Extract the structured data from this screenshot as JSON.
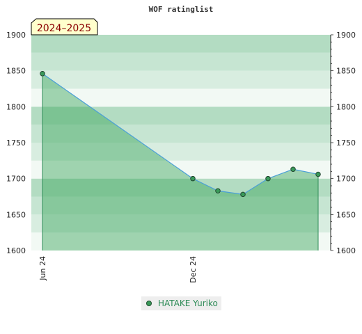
{
  "chart_data": {
    "type": "area",
    "title": "WOF ratinglist",
    "period_badge": "2024–2025",
    "ylim": [
      1600,
      1900
    ],
    "yticks": [
      1600,
      1650,
      1700,
      1750,
      1800,
      1850,
      1900
    ],
    "xtick_labels": [
      "Jun 24",
      "Dec 24"
    ],
    "series": [
      {
        "name": "HATAKE Yuriko",
        "x": [
          "2024-06",
          "2024-12",
          "2025-01",
          "2025-02",
          "2025-03",
          "2025-04",
          "2025-05"
        ],
        "values": [
          1846,
          1700,
          1683,
          1678,
          1700,
          1713,
          1706
        ]
      }
    ],
    "grid": true,
    "legend_position": "bottom"
  },
  "colors": {
    "line": "#4a9fd8",
    "fill": "#3aa55a",
    "marker": "#3a9a5a",
    "band_dark": "#b3dcc2",
    "band_light": "#f0f8f2"
  }
}
